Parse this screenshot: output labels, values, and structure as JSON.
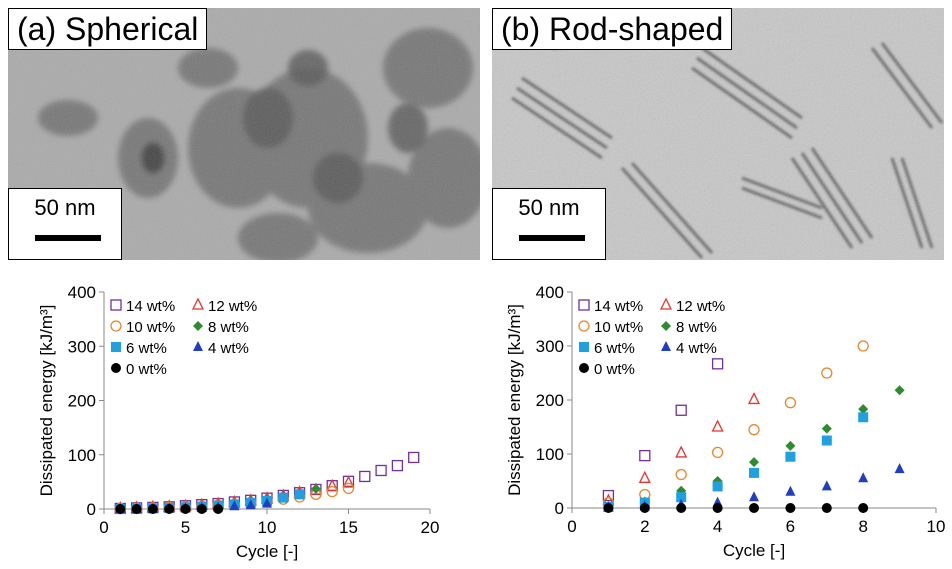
{
  "panels": [
    {
      "label": "(a) Spherical",
      "scale_bar": "50 nm"
    },
    {
      "label": "(b) Rod-shaped",
      "scale_bar": "50 nm"
    }
  ],
  "colors": {
    "14 wt%": "#7030a0",
    "12 wt%": "#e8332c",
    "10 wt%": "#e8862c",
    "8 wt%": "#2e8b2e",
    "6 wt%": "#1fa0e0",
    "4 wt%": "#1f3fbf",
    "0 wt%": "#000000"
  },
  "chart_data": [
    {
      "type": "scatter",
      "xlabel": "Cycle [-]",
      "ylabel": "Dissipated energy [kJ/m³]",
      "xlim": [
        0,
        20
      ],
      "ylim": [
        0,
        400
      ],
      "xticks": [
        0,
        5,
        10,
        15,
        20
      ],
      "yticks": [
        0,
        100,
        200,
        300,
        400
      ],
      "legend_position": "top-left",
      "series": [
        {
          "name": "14 wt%",
          "marker": "open-square",
          "x": [
            1,
            2,
            3,
            4,
            5,
            6,
            7,
            8,
            9,
            10,
            11,
            12,
            13,
            14,
            15,
            16,
            17,
            18,
            19
          ],
          "y": [
            1,
            2,
            3,
            4,
            6,
            8,
            10,
            13,
            16,
            20,
            25,
            30,
            36,
            43,
            51,
            60,
            71,
            80,
            95
          ]
        },
        {
          "name": "12 wt%",
          "marker": "open-triangle",
          "x": [
            1,
            2,
            3,
            4,
            5,
            6,
            7,
            8,
            9,
            10,
            11,
            12,
            13,
            14,
            15
          ],
          "y": [
            1,
            2,
            3,
            4,
            5,
            7,
            9,
            12,
            15,
            19,
            24,
            30,
            35,
            42,
            48
          ]
        },
        {
          "name": "10 wt%",
          "marker": "open-circle",
          "x": [
            1,
            2,
            3,
            4,
            5,
            6,
            7,
            8,
            9,
            10,
            11,
            12,
            13,
            14,
            15
          ],
          "y": [
            1,
            1,
            2,
            3,
            4,
            5,
            7,
            9,
            12,
            15,
            18,
            22,
            27,
            32,
            38
          ]
        },
        {
          "name": "8 wt%",
          "marker": "diamond",
          "x": [
            1,
            2,
            3,
            4,
            5,
            6,
            7,
            8,
            9,
            10,
            11,
            12,
            13
          ],
          "y": [
            0,
            1,
            2,
            3,
            4,
            6,
            8,
            10,
            14,
            18,
            23,
            29,
            37
          ]
        },
        {
          "name": "6 wt%",
          "marker": "square",
          "x": [
            1,
            2,
            3,
            4,
            5,
            6,
            7,
            8,
            9,
            10,
            11,
            12
          ],
          "y": [
            0,
            0,
            1,
            2,
            3,
            4,
            6,
            8,
            11,
            15,
            21,
            27
          ]
        },
        {
          "name": "4 wt%",
          "marker": "triangle",
          "x": [
            1,
            2,
            3,
            4,
            5,
            6,
            7,
            8,
            9,
            10
          ],
          "y": [
            0,
            0,
            0,
            1,
            1,
            2,
            3,
            5,
            7,
            10
          ]
        },
        {
          "name": "0 wt%",
          "marker": "circle",
          "x": [
            1,
            2,
            3,
            4,
            5,
            6,
            7
          ],
          "y": [
            0,
            0,
            0,
            0,
            0,
            0,
            0
          ]
        }
      ]
    },
    {
      "type": "scatter",
      "xlabel": "Cycle [-]",
      "ylabel": "Dissipated energy [kJ/m³]",
      "xlim": [
        0,
        10
      ],
      "ylim": [
        0,
        400
      ],
      "xticks": [
        0,
        2,
        4,
        6,
        8,
        10
      ],
      "yticks": [
        0,
        100,
        200,
        300,
        400
      ],
      "legend_position": "top-left",
      "series": [
        {
          "name": "14 wt%",
          "marker": "open-square",
          "x": [
            1,
            2,
            3,
            4
          ],
          "y": [
            23,
            97,
            181,
            267
          ]
        },
        {
          "name": "12 wt%",
          "marker": "open-triangle",
          "x": [
            1,
            2,
            3,
            4,
            5
          ],
          "y": [
            13,
            55,
            102,
            150,
            201
          ]
        },
        {
          "name": "10 wt%",
          "marker": "open-circle",
          "x": [
            1,
            2,
            3,
            4,
            5,
            6,
            7,
            8
          ],
          "y": [
            10,
            25,
            62,
            103,
            145,
            195,
            250,
            300
          ]
        },
        {
          "name": "8 wt%",
          "marker": "diamond",
          "x": [
            1,
            2,
            3,
            4,
            5,
            6,
            7,
            8,
            9
          ],
          "y": [
            3,
            12,
            32,
            50,
            85,
            115,
            147,
            183,
            218
          ]
        },
        {
          "name": "6 wt%",
          "marker": "square",
          "x": [
            1,
            2,
            3,
            4,
            5,
            6,
            7,
            8
          ],
          "y": [
            2,
            10,
            20,
            40,
            65,
            95,
            125,
            168
          ]
        },
        {
          "name": "4 wt%",
          "marker": "triangle",
          "x": [
            1,
            2,
            3,
            4,
            5,
            6,
            7,
            8,
            9
          ],
          "y": [
            1,
            3,
            6,
            10,
            20,
            30,
            40,
            55,
            72
          ]
        },
        {
          "name": "0 wt%",
          "marker": "circle",
          "x": [
            1,
            2,
            3,
            4,
            5,
            6,
            7,
            8
          ],
          "y": [
            0,
            0,
            0,
            0,
            0,
            0,
            0,
            0
          ]
        }
      ]
    }
  ]
}
